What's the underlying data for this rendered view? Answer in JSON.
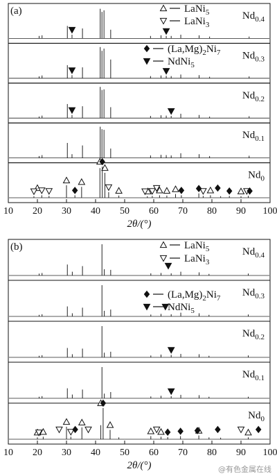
{
  "chart_data": [
    {
      "type": "xrd",
      "panel_label": "(a)",
      "x_label": "2θ/(°)",
      "xlim": [
        10,
        100
      ],
      "xticks": [
        10,
        20,
        30,
        40,
        50,
        60,
        70,
        80,
        90,
        100
      ],
      "legend": [
        {
          "label": [
            "LaNi",
            "5"
          ],
          "marker": "triangle-up-open"
        },
        {
          "label": [
            "LaNi",
            "3"
          ],
          "marker": "triangle-down-open"
        },
        {
          "label": [
            "(La,Mg)",
            "2",
            "Ni",
            "7"
          ],
          "marker": "diamond-filled"
        },
        {
          "label": [
            "NdNi",
            "5"
          ],
          "marker": "triangle-down-filled"
        }
      ],
      "series": [
        {
          "name": [
            "Nd",
            "0.4"
          ],
          "color": "#222222",
          "x": [
            20.6,
            21.6,
            30.3,
            31.9,
            35.5,
            41.6,
            42.2,
            42.9,
            45.2,
            58.9,
            62.5,
            64.3,
            66,
            69.3,
            75.6,
            79.2,
            92.8
          ],
          "values": [
            8,
            10,
            40,
            12,
            32,
            95,
            85,
            90,
            28,
            8,
            10,
            8,
            8,
            12,
            10,
            6,
            6
          ],
          "phase_markers": [
            [],
            [],
            [],
            [
              31.9,
              64.3
            ]
          ]
        },
        {
          "name": [
            "Nd",
            "0.3"
          ],
          "color": "#222222",
          "x": [
            20.6,
            21.6,
            30.3,
            31.9,
            35.5,
            41.6,
            42.2,
            42.9,
            45.2,
            58.9,
            62.5,
            64.3,
            66,
            69.3,
            75.6,
            79.2,
            92.8
          ],
          "values": [
            6,
            9,
            42,
            10,
            35,
            100,
            88,
            95,
            60,
            7,
            9,
            8,
            7,
            12,
            10,
            5,
            6
          ],
          "phase_markers": [
            [],
            [],
            [],
            [
              31.9,
              64.3
            ]
          ]
        },
        {
          "name": [
            "Nd",
            "0.2"
          ],
          "color": "#222222",
          "x": [
            20.6,
            21.6,
            30.3,
            31.9,
            35.5,
            41.6,
            42.2,
            42.9,
            45.2,
            58.9,
            62.5,
            64.3,
            66,
            69.3,
            75.6,
            79.2,
            92.8
          ],
          "values": [
            5,
            8,
            45,
            10,
            38,
            100,
            90,
            92,
            35,
            7,
            9,
            8,
            7,
            14,
            10,
            5,
            6
          ],
          "phase_markers": [
            [],
            [],
            [],
            [
              31.9,
              66
            ]
          ]
        },
        {
          "name": [
            "Nd",
            "0.1"
          ],
          "color": "#222222",
          "x": [
            20.6,
            21.6,
            30.3,
            31.9,
            35.5,
            41.6,
            42.2,
            42.9,
            45.2,
            58.9,
            62.5,
            64.3,
            66,
            69.3,
            75.6,
            79.2,
            92.8
          ],
          "values": [
            6,
            9,
            48,
            12,
            40,
            100,
            92,
            90,
            30,
            8,
            10,
            9,
            8,
            15,
            12,
            6,
            7
          ],
          "phase_markers": [
            [],
            [],
            [],
            []
          ]
        },
        {
          "name": [
            "Nd",
            "0"
          ],
          "color": "#222222",
          "x": [
            18.8,
            21.5,
            24,
            30,
            32.9,
            35.2,
            41.5,
            42.3,
            43.2,
            44.5,
            48,
            57.8,
            59.5,
            62,
            64.5,
            67.5,
            69.5,
            75.5,
            77,
            79.5,
            83,
            86,
            90,
            92.5
          ],
          "values": [
            5,
            8,
            6,
            40,
            8,
            35,
            95,
            100,
            80,
            18,
            7,
            5,
            6,
            8,
            7,
            12,
            8,
            14,
            6,
            8,
            5,
            6,
            5,
            6
          ],
          "phase_markers": [
            [
              20,
              30,
              35.2,
              41.5,
              43.2,
              48,
              58,
              62,
              64.5,
              67.5,
              79.5,
              90
            ],
            [
              18.8,
              21.5,
              24,
              44.5,
              57,
              59.5,
              61,
              77,
              92
            ],
            [
              32.9,
              42.3,
              69.5,
              75.5,
              82,
              86,
              93
            ],
            []
          ]
        }
      ]
    },
    {
      "type": "xrd",
      "panel_label": "(b)",
      "x_label": "2θ/(°)",
      "xlim": [
        10,
        100
      ],
      "xticks": [
        10,
        20,
        30,
        40,
        50,
        60,
        70,
        80,
        90,
        100
      ],
      "legend": [
        {
          "label": [
            "LaNi",
            "5"
          ],
          "marker": "triangle-up-open"
        },
        {
          "label": [
            "LaNi",
            "3"
          ],
          "marker": "triangle-down-open"
        },
        {
          "label": [
            "(La,Mg)",
            "2",
            "Ni",
            "7"
          ],
          "marker": "diamond-filled"
        },
        {
          "label": [
            "NdNi",
            "5"
          ],
          "marker": "triangle-down-filled"
        }
      ],
      "series": [
        {
          "name": [
            "Nd",
            "0.4"
          ],
          "color": "#222222",
          "x": [
            20.6,
            21.6,
            30.3,
            32,
            35.5,
            42.2,
            43,
            45.2,
            59,
            62.5,
            66,
            69.3,
            75.6,
            79,
            92.5
          ],
          "values": [
            6,
            8,
            35,
            12,
            30,
            100,
            20,
            18,
            7,
            8,
            7,
            12,
            10,
            5,
            6
          ],
          "phase_markers": [
            [],
            [],
            [],
            [
              65
            ]
          ]
        },
        {
          "name": [
            "Nd",
            "0.3"
          ],
          "color": "#222222",
          "x": [
            20.6,
            21.6,
            30.3,
            32,
            35.5,
            42.2,
            43,
            45.2,
            59,
            62.5,
            66,
            69.3,
            75.6,
            79,
            92.5
          ],
          "values": [
            5,
            7,
            32,
            10,
            28,
            100,
            18,
            22,
            6,
            8,
            7,
            12,
            10,
            5,
            6
          ],
          "phase_markers": [
            [],
            [],
            [],
            [
              64
            ]
          ]
        },
        {
          "name": [
            "Nd",
            "0.2"
          ],
          "color": "#222222",
          "x": [
            20.6,
            21.6,
            30.3,
            32,
            35.5,
            42.2,
            43,
            45.2,
            59,
            62.5,
            66,
            69.3,
            75.6,
            79,
            92.5
          ],
          "values": [
            5,
            7,
            30,
            10,
            28,
            100,
            15,
            18,
            6,
            9,
            8,
            11,
            10,
            5,
            6
          ],
          "phase_markers": [
            [],
            [],
            [],
            [
              66
            ]
          ]
        },
        {
          "name": [
            "Nd",
            "0.1"
          ],
          "color": "#222222",
          "x": [
            20.6,
            21.6,
            30.3,
            32,
            35.5,
            42.2,
            43,
            45.2,
            59,
            62.5,
            66,
            69.3,
            75.6,
            79,
            92.5
          ],
          "values": [
            5,
            7,
            32,
            12,
            28,
            100,
            15,
            20,
            6,
            8,
            7,
            11,
            10,
            5,
            5
          ],
          "phase_markers": [
            [],
            [],
            [],
            [
              66
            ]
          ]
        },
        {
          "name": [
            "Nd",
            "0"
          ],
          "color": "#222222",
          "x": [
            20,
            22,
            30,
            31.5,
            35.3,
            41.8,
            42.6,
            45,
            48,
            59,
            62.5,
            64.8,
            69.2,
            75.5,
            79,
            83,
            92.5
          ],
          "values": [
            6,
            8,
            40,
            8,
            38,
            45,
            100,
            30,
            6,
            10,
            8,
            7,
            10,
            12,
            6,
            5,
            6
          ],
          "phase_markers": [
            [
              20,
              22,
              30,
              35.3,
              41.8,
              45,
              59,
              62.5,
              75.5,
              92.5
            ],
            [
              20.5,
              27.5,
              31.5,
              37.5,
              61,
              90
            ],
            [
              33,
              42.6,
              64.8,
              69.2,
              75,
              82,
              96
            ],
            []
          ]
        }
      ]
    }
  ],
  "watermark": "@有色金属在线"
}
